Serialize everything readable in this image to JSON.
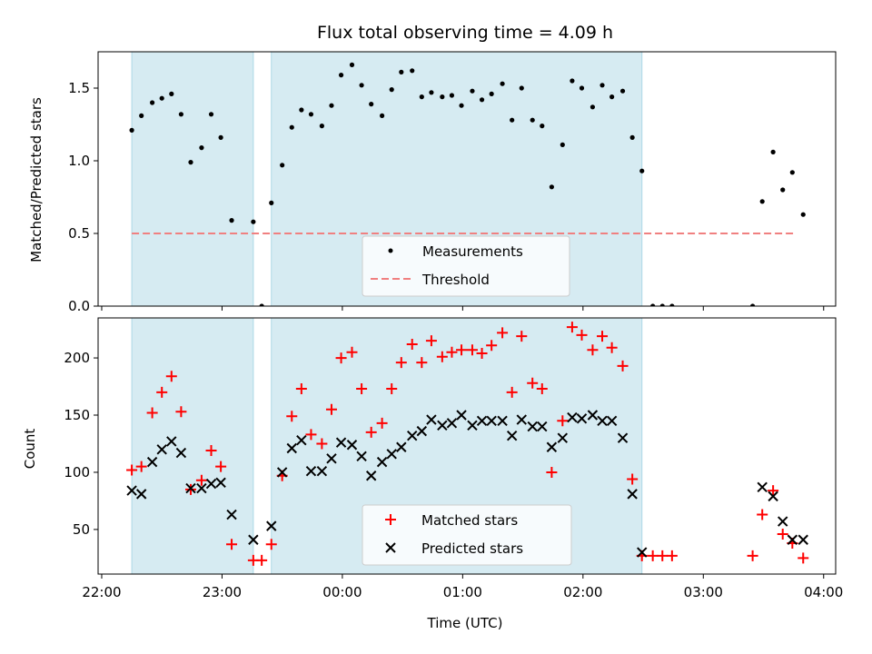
{
  "chart_data": {
    "type": "scatter",
    "title": "Flux total observing time = 4.09 h",
    "xlabel": "Time (UTC)",
    "x_tick_labels": [
      "22:00",
      "23:00",
      "00:00",
      "01:00",
      "02:00",
      "03:00",
      "04:00"
    ],
    "x_unit": "hours since 22:00 UTC",
    "xlim": [
      -0.03,
      6.1
    ],
    "shaded_intervals": [
      [
        0.25,
        1.26
      ],
      [
        1.41,
        4.49
      ]
    ],
    "colors": {
      "shade": "#add8e6",
      "measurements": "#000000",
      "threshold": "#f08080",
      "matched": "#ff0000",
      "predicted": "#000000"
    },
    "panels": [
      {
        "ylabel": "Matched/Predicted stars",
        "ylim": [
          0,
          1.75
        ],
        "yticks": [
          0.0,
          0.5,
          1.0,
          1.5
        ],
        "y_tick_labels": [
          "0.0",
          "0.5",
          "1.0",
          "1.5"
        ],
        "threshold": {
          "name": "Threshold",
          "value": 0.5,
          "x_range": [
            0.25,
            5.76
          ]
        },
        "series": [
          {
            "name": "Measurements",
            "marker": "dot",
            "points": [
              [
                0.25,
                1.21
              ],
              [
                0.33,
                1.31
              ],
              [
                0.42,
                1.4
              ],
              [
                0.5,
                1.43
              ],
              [
                0.58,
                1.46
              ],
              [
                0.66,
                1.32
              ],
              [
                0.74,
                0.99
              ],
              [
                0.83,
                1.09
              ],
              [
                0.91,
                1.32
              ],
              [
                0.99,
                1.16
              ],
              [
                1.08,
                0.59
              ],
              [
                1.26,
                0.58
              ],
              [
                1.33,
                0.0
              ],
              [
                1.41,
                0.71
              ],
              [
                1.5,
                0.97
              ],
              [
                1.58,
                1.23
              ],
              [
                1.66,
                1.35
              ],
              [
                1.74,
                1.32
              ],
              [
                1.83,
                1.24
              ],
              [
                1.91,
                1.38
              ],
              [
                1.99,
                1.59
              ],
              [
                2.08,
                1.66
              ],
              [
                2.16,
                1.52
              ],
              [
                2.24,
                1.39
              ],
              [
                2.33,
                1.31
              ],
              [
                2.41,
                1.49
              ],
              [
                2.49,
                1.61
              ],
              [
                2.58,
                1.62
              ],
              [
                2.66,
                1.44
              ],
              [
                2.74,
                1.47
              ],
              [
                2.83,
                1.44
              ],
              [
                2.91,
                1.45
              ],
              [
                2.99,
                1.38
              ],
              [
                3.08,
                1.48
              ],
              [
                3.16,
                1.42
              ],
              [
                3.24,
                1.46
              ],
              [
                3.33,
                1.53
              ],
              [
                3.41,
                1.28
              ],
              [
                3.49,
                1.5
              ],
              [
                3.58,
                1.28
              ],
              [
                3.66,
                1.24
              ],
              [
                3.74,
                0.82
              ],
              [
                3.83,
                1.11
              ],
              [
                3.91,
                1.55
              ],
              [
                3.99,
                1.5
              ],
              [
                4.08,
                1.37
              ],
              [
                4.16,
                1.52
              ],
              [
                4.24,
                1.44
              ],
              [
                4.33,
                1.48
              ],
              [
                4.41,
                1.16
              ],
              [
                4.49,
                0.93
              ],
              [
                4.58,
                0.0
              ],
              [
                4.66,
                0.0
              ],
              [
                4.74,
                0.0
              ],
              [
                5.41,
                0.0
              ],
              [
                5.49,
                0.72
              ],
              [
                5.58,
                1.06
              ],
              [
                5.66,
                0.8
              ],
              [
                5.74,
                0.92
              ],
              [
                5.83,
                0.63
              ]
            ]
          }
        ]
      },
      {
        "ylabel": "Count",
        "ylim": [
          11,
          235
        ],
        "yticks": [
          50,
          100,
          150,
          200
        ],
        "y_tick_labels": [
          "50",
          "100",
          "150",
          "200"
        ],
        "series": [
          {
            "name": "Matched stars",
            "marker": "plus",
            "points": [
              [
                0.25,
                102
              ],
              [
                0.33,
                105
              ],
              [
                0.42,
                152
              ],
              [
                0.5,
                170
              ],
              [
                0.58,
                184
              ],
              [
                0.66,
                153
              ],
              [
                0.74,
                85
              ],
              [
                0.83,
                93
              ],
              [
                0.91,
                119
              ],
              [
                0.99,
                105
              ],
              [
                1.08,
                37
              ],
              [
                1.26,
                23
              ],
              [
                1.33,
                23
              ],
              [
                1.41,
                37
              ],
              [
                1.5,
                97
              ],
              [
                1.58,
                149
              ],
              [
                1.66,
                173
              ],
              [
                1.74,
                133
              ],
              [
                1.83,
                125
              ],
              [
                1.91,
                155
              ],
              [
                1.99,
                200
              ],
              [
                2.08,
                205
              ],
              [
                2.16,
                173
              ],
              [
                2.24,
                135
              ],
              [
                2.33,
                143
              ],
              [
                2.41,
                173
              ],
              [
                2.49,
                196
              ],
              [
                2.58,
                212
              ],
              [
                2.66,
                196
              ],
              [
                2.74,
                215
              ],
              [
                2.83,
                201
              ],
              [
                2.91,
                205
              ],
              [
                2.99,
                207
              ],
              [
                3.08,
                207
              ],
              [
                3.16,
                204
              ],
              [
                3.24,
                211
              ],
              [
                3.33,
                222
              ],
              [
                3.41,
                170
              ],
              [
                3.49,
                219
              ],
              [
                3.58,
                178
              ],
              [
                3.66,
                173
              ],
              [
                3.74,
                100
              ],
              [
                3.83,
                145
              ],
              [
                3.91,
                227
              ],
              [
                3.99,
                220
              ],
              [
                4.08,
                207
              ],
              [
                4.16,
                219
              ],
              [
                4.24,
                209
              ],
              [
                4.33,
                193
              ],
              [
                4.41,
                94
              ],
              [
                4.49,
                27
              ],
              [
                4.58,
                27
              ],
              [
                4.66,
                27
              ],
              [
                4.74,
                27
              ],
              [
                5.41,
                27
              ],
              [
                5.49,
                63
              ],
              [
                5.58,
                84
              ],
              [
                5.66,
                46
              ],
              [
                5.74,
                38
              ],
              [
                5.83,
                25
              ]
            ]
          },
          {
            "name": "Predicted stars",
            "marker": "x",
            "points": [
              [
                0.25,
                84
              ],
              [
                0.33,
                81
              ],
              [
                0.42,
                109
              ],
              [
                0.5,
                120
              ],
              [
                0.58,
                127
              ],
              [
                0.66,
                117
              ],
              [
                0.74,
                86
              ],
              [
                0.83,
                86
              ],
              [
                0.91,
                90
              ],
              [
                0.99,
                91
              ],
              [
                1.08,
                63
              ],
              [
                1.26,
                41
              ],
              [
                1.41,
                53
              ],
              [
                1.5,
                100
              ],
              [
                1.58,
                121
              ],
              [
                1.66,
                128
              ],
              [
                1.74,
                101
              ],
              [
                1.83,
                101
              ],
              [
                1.91,
                112
              ],
              [
                1.99,
                126
              ],
              [
                2.08,
                124
              ],
              [
                2.16,
                114
              ],
              [
                2.24,
                97
              ],
              [
                2.33,
                109
              ],
              [
                2.41,
                116
              ],
              [
                2.49,
                122
              ],
              [
                2.58,
                132
              ],
              [
                2.66,
                136
              ],
              [
                2.74,
                146
              ],
              [
                2.83,
                141
              ],
              [
                2.91,
                143
              ],
              [
                2.99,
                150
              ],
              [
                3.08,
                141
              ],
              [
                3.16,
                145
              ],
              [
                3.24,
                145
              ],
              [
                3.33,
                145
              ],
              [
                3.41,
                132
              ],
              [
                3.49,
                146
              ],
              [
                3.58,
                140
              ],
              [
                3.66,
                140
              ],
              [
                3.74,
                122
              ],
              [
                3.83,
                130
              ],
              [
                3.91,
                148
              ],
              [
                3.99,
                147
              ],
              [
                4.08,
                150
              ],
              [
                4.16,
                145
              ],
              [
                4.24,
                145
              ],
              [
                4.33,
                130
              ],
              [
                4.41,
                81
              ],
              [
                4.49,
                30
              ],
              [
                5.49,
                87
              ],
              [
                5.58,
                79
              ],
              [
                5.66,
                57
              ],
              [
                5.74,
                41
              ],
              [
                5.83,
                41
              ]
            ]
          }
        ]
      }
    ]
  }
}
